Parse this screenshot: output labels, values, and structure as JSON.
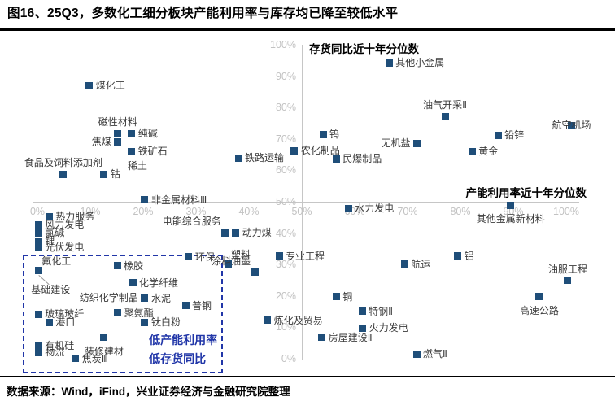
{
  "header": {
    "title": "图16、25Q3，多数化工细分板块产能利用率与库存均已降至较低水平"
  },
  "footer": {
    "source": "数据来源：Wind，iFind，兴业证券经济与金融研究院整理"
  },
  "chart_data": {
    "type": "scatter",
    "xlabel": "产能利用率近十年分位数",
    "ylabel": "存货同比近十年分位数",
    "xlim": [
      0,
      100
    ],
    "ylim": [
      0,
      100
    ],
    "grid": false,
    "quadrant_origin": [
      50,
      50
    ],
    "x_ticks": [
      "0%",
      "10%",
      "20%",
      "30%",
      "40%",
      "50%",
      "60%",
      "70%",
      "80%",
      "90%",
      "100%"
    ],
    "y_ticks": [
      "0%",
      "10%",
      "20%",
      "30%",
      "40%",
      "50%",
      "60%",
      "70%",
      "80%",
      "90%",
      "100%"
    ],
    "marker_color": "#1F4E79",
    "accent_color": "#2136a8",
    "axis_color": "#c6c6c6",
    "tick_color": "#c2c2c2",
    "points": [
      {
        "label": "煤化工",
        "x": 9.8,
        "y": 87.3,
        "lp": "r"
      },
      {
        "label": "磁性材料",
        "x": 15.2,
        "y": 71.9,
        "lp": "t"
      },
      {
        "label": "纯碱",
        "x": 17.8,
        "y": 71.9,
        "lp": "r"
      },
      {
        "label": "焦煤",
        "x": 15.2,
        "y": 69.4,
        "lp": "l"
      },
      {
        "label": "铁矿石",
        "x": 17.8,
        "y": 66.2,
        "lp": "r"
      },
      {
        "label": "稀土",
        "x": 18.9,
        "y": 61.6,
        "lp": "c",
        "marker": false
      },
      {
        "label": "食品及饲料添加剂",
        "x": 4.9,
        "y": 59.0,
        "lp": "t"
      },
      {
        "label": "钴",
        "x": 12.6,
        "y": 59.0,
        "lp": "r"
      },
      {
        "label": "铁路运输",
        "x": 38.0,
        "y": 64.2,
        "lp": "r"
      },
      {
        "label": "非金属材料Ⅲ",
        "x": 20.3,
        "y": 50.9,
        "lp": "r"
      },
      {
        "label": "热力服务",
        "x": 2.2,
        "y": 45.5,
        "lp": "r"
      },
      {
        "label": "风力发电",
        "x": 0.2,
        "y": 42.9,
        "lp": "r"
      },
      {
        "label": "氯碱",
        "x": 0.2,
        "y": 40.3,
        "lp": "r"
      },
      {
        "label": "锂",
        "x": 0.2,
        "y": 37.7,
        "lp": "r"
      },
      {
        "label": "光伏发电",
        "x": 0.2,
        "y": 35.8,
        "lp": "r"
      },
      {
        "label": "氟化工",
        "x": 0.2,
        "y": 28.3,
        "lp": "tr",
        "leader": true
      },
      {
        "label": "基础建设",
        "x": 2.5,
        "y": 22.3,
        "lp": "c",
        "marker": false
      },
      {
        "label": "橡胶",
        "x": 15.1,
        "y": 29.9,
        "lp": "r"
      },
      {
        "label": "化学纤维",
        "x": 18.0,
        "y": 24.4,
        "lp": "r"
      },
      {
        "label": "纺织化学制品",
        "x": 13.5,
        "y": 19.8,
        "lp": "c",
        "marker": false
      },
      {
        "label": "水泥",
        "x": 20.3,
        "y": 19.5,
        "lp": "r"
      },
      {
        "label": "普钢",
        "x": 28.0,
        "y": 17.1,
        "lp": "r"
      },
      {
        "label": "玻璃玻纤",
        "x": 0.2,
        "y": 14.5,
        "lp": "r"
      },
      {
        "label": "港口",
        "x": 2.2,
        "y": 11.9,
        "lp": "r"
      },
      {
        "label": "聚氨酯",
        "x": 15.2,
        "y": 14.8,
        "lp": "r"
      },
      {
        "label": "钛白粉",
        "x": 20.3,
        "y": 11.9,
        "lp": "r"
      },
      {
        "label": "装修建材",
        "x": 12.6,
        "y": 7.0,
        "lp": "b"
      },
      {
        "label": "有机硅",
        "x": 0.2,
        "y": 4.4,
        "lp": "r"
      },
      {
        "label": "物流",
        "x": 0.2,
        "y": 2.3,
        "lp": "r"
      },
      {
        "label": "焦炭Ⅲ",
        "x": 7.2,
        "y": 0.3,
        "lp": "r"
      },
      {
        "label": "环保",
        "x": 28.6,
        "y": 32.7,
        "lp": "r"
      },
      {
        "label": "电能综合服务",
        "x": 35.5,
        "y": 40.3,
        "lp": "tl"
      },
      {
        "label": "动力煤",
        "x": 37.5,
        "y": 40.3,
        "lp": "r"
      },
      {
        "label": "塑料",
        "x": 36.0,
        "y": 30.4,
        "lp": "tr"
      },
      {
        "label": "涂料油墨",
        "x": 41.1,
        "y": 27.8,
        "lp": "tl"
      },
      {
        "label": "专业工程",
        "x": 45.7,
        "y": 33.0,
        "lp": "r"
      },
      {
        "label": "炼化及贸易",
        "x": 43.5,
        "y": 12.5,
        "lp": "r"
      },
      {
        "label": "水力发电",
        "x": 58.8,
        "y": 48.1,
        "lp": "r"
      },
      {
        "label": "钨",
        "x": 54.0,
        "y": 71.7,
        "lp": "r"
      },
      {
        "label": "农化制品",
        "x": 48.6,
        "y": 66.5,
        "lp": "r"
      },
      {
        "label": "民爆制品",
        "x": 56.5,
        "y": 63.9,
        "lp": "r"
      },
      {
        "label": "无机盐",
        "x": 71.8,
        "y": 68.8,
        "lp": "l"
      },
      {
        "label": "其他小金属",
        "x": 66.5,
        "y": 94.5,
        "lp": "r"
      },
      {
        "label": "油气开采Ⅱ",
        "x": 77.1,
        "y": 77.4,
        "lp": "t"
      },
      {
        "label": "铅锌",
        "x": 87.1,
        "y": 71.4,
        "lp": "r"
      },
      {
        "label": "黄金",
        "x": 82.2,
        "y": 66.2,
        "lp": "r"
      },
      {
        "label": "航空机场",
        "x": 101.0,
        "y": 74.5,
        "lp": "c"
      },
      {
        "label": "其他金属新材料",
        "x": 89.5,
        "y": 49.1,
        "lp": "b"
      },
      {
        "label": "铝",
        "x": 79.5,
        "y": 33.0,
        "lp": "r"
      },
      {
        "label": "航运",
        "x": 69.4,
        "y": 30.4,
        "lp": "r"
      },
      {
        "label": "油服工程",
        "x": 100.3,
        "y": 25.2,
        "lp": "t"
      },
      {
        "label": "高速公路",
        "x": 94.9,
        "y": 20.0,
        "lp": "b"
      },
      {
        "label": "铜",
        "x": 56.5,
        "y": 20.0,
        "lp": "r"
      },
      {
        "label": "特钢Ⅱ",
        "x": 61.4,
        "y": 15.3,
        "lp": "r"
      },
      {
        "label": "火力发电",
        "x": 61.5,
        "y": 10.1,
        "lp": "r"
      },
      {
        "label": "房屋建设Ⅱ",
        "x": 53.8,
        "y": 7.0,
        "lp": "r"
      },
      {
        "label": "燃气Ⅱ",
        "x": 71.7,
        "y": 1.8,
        "lp": "r"
      }
    ],
    "annotation_box": {
      "x0": -2.8,
      "y0": -3.4,
      "x1": 34.5,
      "y1": 33.5
    },
    "annotations": [
      {
        "text": "低产能利用率",
        "x": 21.1,
        "y": 8.8
      },
      {
        "text": "低存货同比",
        "x": 21.1,
        "y": 2.8
      }
    ]
  }
}
